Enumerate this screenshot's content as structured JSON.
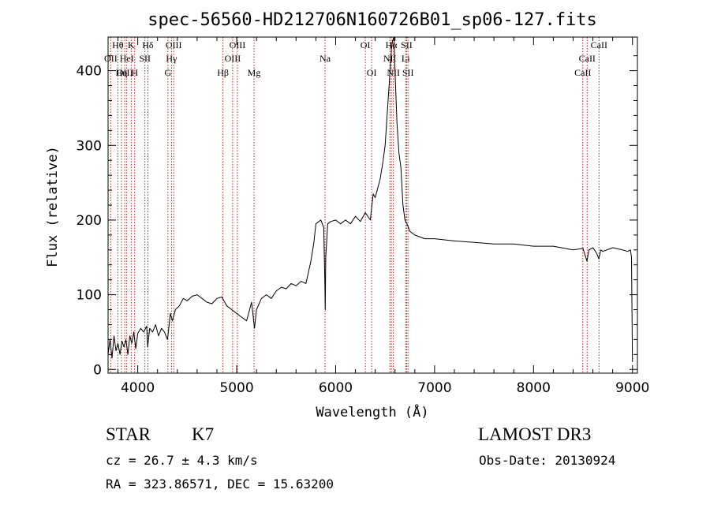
{
  "chart_data": {
    "type": "line",
    "title": "spec-56560-HD212706N160726B01_sp06-127.fits",
    "xlabel": "Wavelength (Å)",
    "ylabel": "Flux (relative)",
    "xlim": [
      3700,
      9050
    ],
    "ylim": [
      -5,
      445
    ],
    "x_ticks": [
      4000,
      5000,
      6000,
      7000,
      8000,
      9000
    ],
    "y_ticks": [
      0,
      100,
      200,
      300,
      400
    ],
    "grid": false,
    "series": [
      {
        "name": "spectrum",
        "x": [
          3700,
          3720,
          3740,
          3760,
          3780,
          3800,
          3820,
          3840,
          3860,
          3880,
          3900,
          3920,
          3940,
          3960,
          3980,
          4000,
          4030,
          4060,
          4090,
          4100,
          4120,
          4150,
          4180,
          4210,
          4240,
          4270,
          4300,
          4330,
          4350,
          4380,
          4420,
          4460,
          4500,
          4550,
          4600,
          4650,
          4700,
          4750,
          4800,
          4850,
          4900,
          4950,
          5000,
          5050,
          5100,
          5150,
          5180,
          5200,
          5250,
          5300,
          5350,
          5400,
          5450,
          5500,
          5550,
          5600,
          5650,
          5700,
          5750,
          5780,
          5800,
          5850,
          5880,
          5890,
          5895,
          5900,
          5920,
          5950,
          6000,
          6050,
          6100,
          6150,
          6200,
          6250,
          6300,
          6350,
          6380,
          6400,
          6450,
          6480,
          6500,
          6520,
          6540,
          6550,
          6560,
          6565,
          6575,
          6590,
          6600,
          6620,
          6640,
          6660,
          6680,
          6700,
          6720,
          6750,
          6800,
          6900,
          7000,
          7200,
          7400,
          7600,
          7800,
          8000,
          8200,
          8400,
          8500,
          8540,
          8560,
          8600,
          8640,
          8660,
          8680,
          8700,
          8800,
          8900,
          8950,
          8980,
          8990,
          9000
        ],
        "values": [
          20,
          40,
          15,
          45,
          25,
          35,
          20,
          38,
          30,
          40,
          20,
          45,
          35,
          50,
          28,
          48,
          55,
          50,
          58,
          30,
          55,
          50,
          60,
          45,
          55,
          50,
          40,
          75,
          65,
          80,
          85,
          95,
          92,
          98,
          100,
          95,
          90,
          88,
          95,
          97,
          85,
          80,
          75,
          70,
          65,
          90,
          55,
          80,
          95,
          100,
          95,
          105,
          110,
          108,
          115,
          112,
          118,
          115,
          145,
          170,
          195,
          200,
          190,
          120,
          80,
          150,
          195,
          198,
          200,
          195,
          200,
          195,
          205,
          198,
          210,
          200,
          235,
          230,
          255,
          280,
          300,
          340,
          380,
          400,
          420,
          430,
          440,
          445,
          400,
          330,
          290,
          270,
          220,
          200,
          195,
          185,
          180,
          175,
          175,
          172,
          170,
          168,
          168,
          165,
          165,
          160,
          162,
          145,
          160,
          163,
          155,
          148,
          160,
          158,
          163,
          160,
          158,
          160,
          150,
          10
        ],
        "color": "#000000"
      }
    ],
    "line_markers": [
      {
        "label": "Hθ",
        "wavelength": 3798,
        "row": 1
      },
      {
        "label": "OII",
        "wavelength": 3727,
        "row": 2
      },
      {
        "label": "OIII",
        "wavelength": 3869,
        "row": 3
      },
      {
        "label": "HeI",
        "wavelength": 3889,
        "row": 2
      },
      {
        "label": "Hη",
        "wavelength": 3835,
        "row": 3
      },
      {
        "label": "K",
        "wavelength": 3934,
        "row": 1
      },
      {
        "label": "H",
        "wavelength": 3969,
        "row": 3
      },
      {
        "label": "SII",
        "wavelength": 4072,
        "row": 2
      },
      {
        "label": "Hδ",
        "wavelength": 4102,
        "row": 1
      },
      {
        "label": "OIII",
        "wavelength": 4363,
        "row": 1
      },
      {
        "label": "Hγ",
        "wavelength": 4341,
        "row": 2
      },
      {
        "label": "G",
        "wavelength": 4305,
        "row": 3
      },
      {
        "label": "Hβ",
        "wavelength": 4861,
        "row": 3
      },
      {
        "label": "OIII",
        "wavelength": 5007,
        "row": 1
      },
      {
        "label": "OIII",
        "wavelength": 4959,
        "row": 2
      },
      {
        "label": "Mg",
        "wavelength": 5175,
        "row": 3
      },
      {
        "label": "Na",
        "wavelength": 5893,
        "row": 2
      },
      {
        "label": "OI",
        "wavelength": 6300,
        "row": 1
      },
      {
        "label": "OI",
        "wavelength": 6364,
        "row": 3
      },
      {
        "label": "Hα",
        "wavelength": 6563,
        "row": 1
      },
      {
        "label": "NII",
        "wavelength": 6548,
        "row": 2
      },
      {
        "label": "NII",
        "wavelength": 6584,
        "row": 3
      },
      {
        "label": "SII",
        "wavelength": 6717,
        "row": 1
      },
      {
        "label": "Li",
        "wavelength": 6708,
        "row": 2
      },
      {
        "label": "SII",
        "wavelength": 6731,
        "row": 3
      },
      {
        "label": "CaII",
        "wavelength": 8662,
        "row": 1
      },
      {
        "label": "CaII",
        "wavelength": 8542,
        "row": 2
      },
      {
        "label": "CaII",
        "wavelength": 8498,
        "row": 3
      }
    ]
  },
  "info": {
    "class": "STAR",
    "subclass": "K7",
    "survey": "LAMOST DR3",
    "cz": "cz = 26.7 ± 4.3 km/s",
    "obs_date": "Obs-Date: 20130924",
    "radec": "RA = 323.86571, DEC =  15.63200"
  },
  "colors": {
    "marker_line": "#b22222",
    "spectrum": "#000000",
    "axis": "#000000"
  }
}
